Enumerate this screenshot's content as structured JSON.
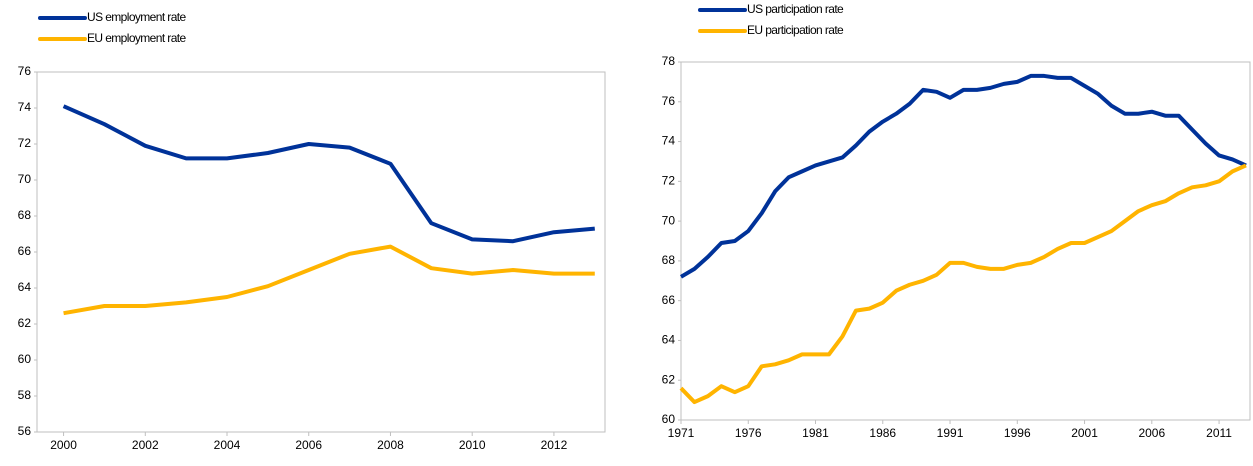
{
  "chart_data": [
    {
      "type": "line",
      "x": [
        2000,
        2001,
        2002,
        2003,
        2004,
        2005,
        2006,
        2007,
        2008,
        2009,
        2010,
        2011,
        2012,
        2013
      ],
      "series": [
        {
          "name": "US employment rate",
          "color": "#003299",
          "values": [
            74.1,
            73.1,
            71.9,
            71.2,
            71.2,
            71.5,
            72.0,
            71.8,
            70.9,
            67.6,
            66.7,
            66.6,
            67.1,
            67.3
          ]
        },
        {
          "name": "EU employment rate",
          "color": "#ffb400",
          "values": [
            62.6,
            63.0,
            63.0,
            63.2,
            63.5,
            64.1,
            65.0,
            65.9,
            66.3,
            65.1,
            64.8,
            65.0,
            64.8,
            64.8
          ]
        }
      ],
      "xlim": [
        1999.35,
        2013.25
      ],
      "xticks": [
        2000,
        2002,
        2004,
        2006,
        2008,
        2010,
        2012
      ],
      "ylim": [
        56,
        76
      ],
      "yticks": [
        56,
        58,
        60,
        62,
        64,
        66,
        68,
        70,
        72,
        74,
        76
      ],
      "grid": false
    },
    {
      "type": "line",
      "x": [
        1971,
        1972,
        1973,
        1974,
        1975,
        1976,
        1977,
        1978,
        1979,
        1980,
        1981,
        1982,
        1983,
        1984,
        1985,
        1986,
        1987,
        1988,
        1989,
        1990,
        1991,
        1992,
        1993,
        1994,
        1995,
        1996,
        1997,
        1998,
        1999,
        2000,
        2001,
        2002,
        2003,
        2004,
        2005,
        2006,
        2007,
        2008,
        2009,
        2010,
        2011,
        2012,
        2013
      ],
      "series": [
        {
          "name": "US participation rate",
          "color": "#003299",
          "values": [
            67.2,
            67.6,
            68.2,
            68.9,
            69.0,
            69.5,
            70.4,
            71.5,
            72.2,
            72.5,
            72.8,
            73.0,
            73.2,
            73.8,
            74.5,
            75.0,
            75.4,
            75.9,
            76.6,
            76.5,
            76.2,
            76.6,
            76.6,
            76.7,
            76.9,
            77.0,
            77.3,
            77.3,
            77.2,
            77.2,
            76.8,
            76.4,
            75.8,
            75.4,
            75.4,
            75.5,
            75.3,
            75.3,
            74.6,
            73.9,
            73.3,
            73.1,
            72.8
          ]
        },
        {
          "name": "EU participation rate",
          "color": "#ffb400",
          "values": [
            61.6,
            60.9,
            61.2,
            61.7,
            61.4,
            61.7,
            62.7,
            62.8,
            63.0,
            63.3,
            63.3,
            63.3,
            64.2,
            65.5,
            65.6,
            65.9,
            66.5,
            66.8,
            67.0,
            67.3,
            67.9,
            67.9,
            67.7,
            67.6,
            67.6,
            67.8,
            67.9,
            68.2,
            68.6,
            68.9,
            68.9,
            69.2,
            69.5,
            70.0,
            70.5,
            70.8,
            71.0,
            71.4,
            71.7,
            71.8,
            72.0,
            72.5,
            72.8
          ]
        }
      ],
      "xlim": [
        1971,
        2013.3
      ],
      "xticks": [
        1971,
        1976,
        1981,
        1986,
        1991,
        1996,
        2001,
        2006,
        2011
      ],
      "ylim": [
        60,
        78
      ],
      "yticks": [
        60,
        62,
        64,
        66,
        68,
        70,
        72,
        74,
        76,
        78
      ],
      "grid": false
    }
  ]
}
